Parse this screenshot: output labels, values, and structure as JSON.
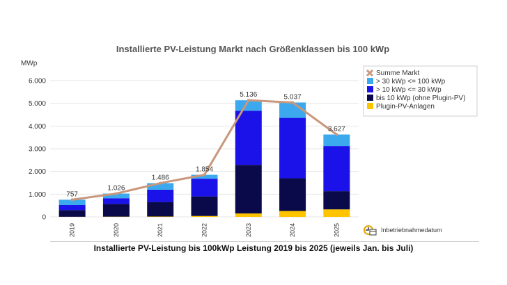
{
  "chart_data": {
    "type": "bar",
    "stacked": true,
    "title": "Installierte PV-Leistung Markt nach Größenklassen bis 100 kWp",
    "ylabel": "MWp",
    "xlabel": "",
    "ylim": [
      0,
      6000
    ],
    "yticks": [
      0,
      1000,
      2000,
      3000,
      4000,
      5000,
      6000
    ],
    "ytick_labels": [
      "0",
      "1.000",
      "2.000",
      "3.000",
      "4.000",
      "5.000",
      "6.000"
    ],
    "grid": true,
    "categories": [
      "2019",
      "2020",
      "2021",
      "2022",
      "2023",
      "2024",
      "2025"
    ],
    "series": [
      {
        "name": "Plugin-PV-Anlagen",
        "color": "#ffc400",
        "values": [
          5,
          10,
          15,
          40,
          150,
          260,
          330
        ]
      },
      {
        "name": "bis 10 kWp (ohne Plugin-PV)",
        "color": "#0a0a4a",
        "values": [
          295,
          560,
          640,
          860,
          2140,
          1440,
          800
        ]
      },
      {
        "name": "> 10 kWp <= 30 kWp",
        "color": "#1a12e8",
        "values": [
          220,
          250,
          540,
          780,
          2380,
          2660,
          1990
        ]
      },
      {
        "name": "> 30 kWp <= 100 kWp",
        "color": "#3ca9ee",
        "values": [
          237,
          206,
          291,
          174,
          466,
          677,
          507
        ]
      }
    ],
    "line": {
      "name": "Summe Markt",
      "color": "#c8977c",
      "values": [
        757,
        1026,
        1486,
        1854,
        5136,
        5037,
        3627
      ],
      "labels": [
        "757",
        "1.026",
        "1.486",
        "1.854",
        "5.136",
        "5.037",
        "3.627"
      ]
    },
    "legend_position": "top-right",
    "footnote": "Inbetriebnahmedatum"
  },
  "caption": "Installierte PV-Leistung bis 100kWp Leistung 2019 bis 2025 (jeweils Jan. bis Juli)"
}
